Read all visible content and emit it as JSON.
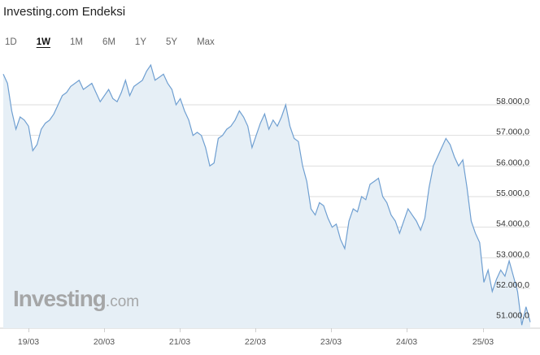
{
  "header": {
    "title": "Investing.com Endeksi"
  },
  "range_tabs": [
    {
      "label": "1D",
      "active": false
    },
    {
      "label": "1W",
      "active": true
    },
    {
      "label": "1M",
      "active": false
    },
    {
      "label": "6M",
      "active": false
    },
    {
      "label": "1Y",
      "active": false
    },
    {
      "label": "5Y",
      "active": false
    },
    {
      "label": "Max",
      "active": false
    }
  ],
  "watermark": {
    "main": "Investing",
    "tld": ".com"
  },
  "colors": {
    "line": "#6f9fd1",
    "fill": "#e6eff6",
    "grid": "#dedede"
  },
  "chart_data": {
    "type": "area",
    "title": "Investing.com Endeksi",
    "xlabel": "",
    "ylabel": "",
    "x_ticks": [
      "19/03",
      "20/03",
      "21/03",
      "22/03",
      "23/03",
      "24/03",
      "25/03"
    ],
    "y_ticks": [
      51000,
      52000,
      53000,
      54000,
      55000,
      56000,
      57000,
      58000
    ],
    "y_tick_labels": [
      "51.000,0",
      "52.000,0",
      "53.000,0",
      "54.000,0",
      "55.000,0",
      "56.000,0",
      "57.000,0",
      "58.000,0"
    ],
    "ylim": [
      50700,
      59300
    ],
    "grid": true,
    "series": [
      {
        "values": [
          59000,
          58700,
          57800,
          57200,
          57600,
          57500,
          57300,
          56500,
          56700,
          57200,
          57400,
          57500,
          57700,
          58000,
          58300,
          58400,
          58600,
          58700,
          58800,
          58500,
          58600,
          58700,
          58400,
          58100,
          58300,
          58500,
          58200,
          58100,
          58400,
          58800,
          58300,
          58600,
          58700,
          58800,
          59100,
          59300,
          58800,
          58900,
          59000,
          58700,
          58500,
          58000,
          58200,
          57800,
          57500,
          57000,
          57100,
          57000,
          56600,
          56000,
          56100,
          56900,
          57000,
          57200,
          57300,
          57500,
          57800,
          57600,
          57300,
          56600,
          57000,
          57400,
          57700,
          57200,
          57500,
          57300,
          57600,
          58000,
          57300,
          56900,
          56800,
          56000,
          55500,
          54600,
          54400,
          54800,
          54700,
          54300,
          54000,
          54100,
          53600,
          53300,
          54200,
          54600,
          54500,
          55000,
          54900,
          55400,
          55500,
          55600,
          55000,
          54800,
          54400,
          54200,
          53800,
          54200,
          54600,
          54400,
          54200,
          53900,
          54300,
          55300,
          56000,
          56300,
          56600,
          56900,
          56700,
          56300,
          56000,
          56200,
          55300,
          54200,
          53800,
          53500,
          52200,
          52600,
          51900,
          52300,
          52600,
          52400,
          52900,
          52400,
          51900,
          50800,
          51400,
          50900
        ]
      }
    ]
  }
}
